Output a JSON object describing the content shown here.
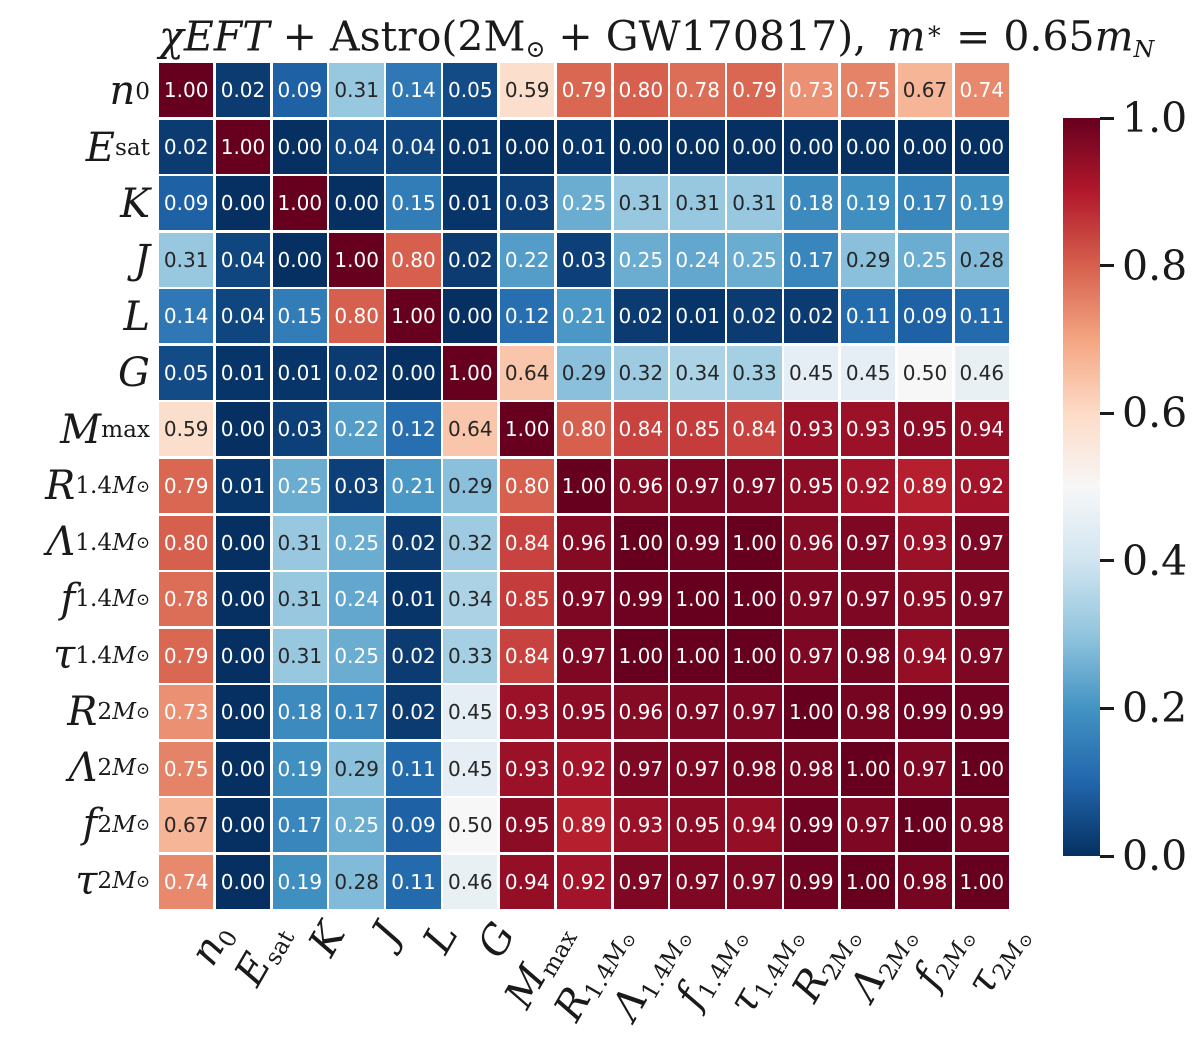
{
  "title": {
    "text": "χEFT + Astro(2M⊙ + GW170817), m∗ = 0.65mN",
    "segments": [
      {
        "t": "χEFT",
        "i": true
      },
      {
        "t": " + Astro(2M"
      },
      {
        "t": "⊙",
        "sub": true
      },
      {
        "t": " + GW170817),&ensp;"
      },
      {
        "t": "m",
        "i": true
      },
      {
        "t": "∗",
        "sup": true
      },
      {
        "t": " = 0.65"
      },
      {
        "t": "m",
        "i": true
      },
      {
        "t": "N",
        "i": true,
        "sub": true
      }
    ]
  },
  "chart_data": {
    "type": "heatmap",
    "title": "χEFT + Astro(2M⊙ + GW170817), m∗ = 0.65mN",
    "categories": [
      "n_0",
      "E_sat",
      "K",
      "J",
      "L",
      "G",
      "M_max",
      "R_1.4M⊙",
      "Λ_1.4M⊙",
      "f_1.4M⊙",
      "τ_1.4M⊙",
      "R_2M⊙",
      "Λ_2M⊙",
      "f_2M⊙",
      "τ_2M⊙"
    ],
    "matrix": [
      [
        1.0,
        0.02,
        0.09,
        0.31,
        0.14,
        0.05,
        0.59,
        0.79,
        0.8,
        0.78,
        0.79,
        0.73,
        0.75,
        0.67,
        0.74
      ],
      [
        0.02,
        1.0,
        0.0,
        0.04,
        0.04,
        0.01,
        0.0,
        0.01,
        0.0,
        0.0,
        0.0,
        0.0,
        0.0,
        0.0,
        0.0
      ],
      [
        0.09,
        0.0,
        1.0,
        0.0,
        0.15,
        0.01,
        0.03,
        0.25,
        0.31,
        0.31,
        0.31,
        0.18,
        0.19,
        0.17,
        0.19
      ],
      [
        0.31,
        0.04,
        0.0,
        1.0,
        0.8,
        0.02,
        0.22,
        0.03,
        0.25,
        0.24,
        0.25,
        0.17,
        0.29,
        0.25,
        0.28
      ],
      [
        0.14,
        0.04,
        0.15,
        0.8,
        1.0,
        0.0,
        0.12,
        0.21,
        0.02,
        0.01,
        0.02,
        0.02,
        0.11,
        0.09,
        0.11
      ],
      [
        0.05,
        0.01,
        0.01,
        0.02,
        0.0,
        1.0,
        0.64,
        0.29,
        0.32,
        0.34,
        0.33,
        0.45,
        0.45,
        0.5,
        0.46
      ],
      [
        0.59,
        0.0,
        0.03,
        0.22,
        0.12,
        0.64,
        1.0,
        0.8,
        0.84,
        0.85,
        0.84,
        0.93,
        0.93,
        0.95,
        0.94
      ],
      [
        0.79,
        0.01,
        0.25,
        0.03,
        0.21,
        0.29,
        0.8,
        1.0,
        0.96,
        0.97,
        0.97,
        0.95,
        0.92,
        0.89,
        0.92
      ],
      [
        0.8,
        0.0,
        0.31,
        0.25,
        0.02,
        0.32,
        0.84,
        0.96,
        1.0,
        0.99,
        1.0,
        0.96,
        0.97,
        0.93,
        0.97
      ],
      [
        0.78,
        0.0,
        0.31,
        0.24,
        0.01,
        0.34,
        0.85,
        0.97,
        0.99,
        1.0,
        1.0,
        0.97,
        0.97,
        0.95,
        0.97
      ],
      [
        0.79,
        0.0,
        0.31,
        0.25,
        0.02,
        0.33,
        0.84,
        0.97,
        1.0,
        1.0,
        1.0,
        0.97,
        0.98,
        0.94,
        0.97
      ],
      [
        0.73,
        0.0,
        0.18,
        0.17,
        0.02,
        0.45,
        0.93,
        0.95,
        0.96,
        0.97,
        0.97,
        1.0,
        0.98,
        0.99,
        0.99
      ],
      [
        0.75,
        0.0,
        0.19,
        0.29,
        0.11,
        0.45,
        0.93,
        0.92,
        0.97,
        0.97,
        0.98,
        0.98,
        1.0,
        0.97,
        1.0
      ],
      [
        0.67,
        0.0,
        0.17,
        0.25,
        0.09,
        0.5,
        0.95,
        0.89,
        0.93,
        0.95,
        0.94,
        0.99,
        0.97,
        1.0,
        0.98
      ],
      [
        0.74,
        0.0,
        0.19,
        0.28,
        0.11,
        0.46,
        0.94,
        0.92,
        0.97,
        0.97,
        0.97,
        0.99,
        1.0,
        0.98,
        1.0
      ]
    ],
    "vmin": 0.0,
    "vmax": 1.0,
    "colormap": "RdBu_r",
    "value_format": "0.00",
    "grid": false,
    "colorbar_position": "right",
    "colorbar_ticks": [
      "1.0",
      "0.8",
      "0.6",
      "0.4",
      "0.2",
      "0.0"
    ]
  },
  "axis_label_segments": [
    [
      {
        "t": "n",
        "i": true
      },
      {
        "t": "0",
        "sub": true
      }
    ],
    [
      {
        "t": "E",
        "i": true
      },
      {
        "t": "sat",
        "sub": true
      }
    ],
    [
      {
        "t": "K",
        "i": true
      }
    ],
    [
      {
        "t": "J",
        "i": true
      }
    ],
    [
      {
        "t": "L",
        "i": true
      }
    ],
    [
      {
        "t": "G",
        "i": true
      }
    ],
    [
      {
        "t": "M",
        "i": true
      },
      {
        "t": "max",
        "sub": true
      }
    ],
    [
      {
        "t": "R",
        "i": true
      },
      {
        "t": "1.4",
        "sub": true
      },
      {
        "t": "M",
        "i": true,
        "sub": true
      },
      {
        "t": "⊙",
        "subsub": true
      }
    ],
    [
      {
        "t": "Λ",
        "i": true
      },
      {
        "t": "1.4",
        "sub": true
      },
      {
        "t": "M",
        "i": true,
        "sub": true
      },
      {
        "t": "⊙",
        "subsub": true
      }
    ],
    [
      {
        "t": "f",
        "i": true
      },
      {
        "t": "1.4",
        "sub": true
      },
      {
        "t": "M",
        "i": true,
        "sub": true
      },
      {
        "t": "⊙",
        "subsub": true
      }
    ],
    [
      {
        "t": "τ",
        "i": true
      },
      {
        "t": "1.4",
        "sub": true
      },
      {
        "t": "M",
        "i": true,
        "sub": true
      },
      {
        "t": "⊙",
        "subsub": true
      }
    ],
    [
      {
        "t": "R",
        "i": true
      },
      {
        "t": "2",
        "sub": true
      },
      {
        "t": "M",
        "i": true,
        "sub": true
      },
      {
        "t": "⊙",
        "subsub": true
      }
    ],
    [
      {
        "t": "Λ",
        "i": true
      },
      {
        "t": "2",
        "sub": true
      },
      {
        "t": "M",
        "i": true,
        "sub": true
      },
      {
        "t": "⊙",
        "subsub": true
      }
    ],
    [
      {
        "t": "f",
        "i": true
      },
      {
        "t": "2",
        "sub": true
      },
      {
        "t": "M",
        "i": true,
        "sub": true
      },
      {
        "t": "⊙",
        "subsub": true
      }
    ],
    [
      {
        "t": "τ",
        "i": true
      },
      {
        "t": "2",
        "sub": true
      },
      {
        "t": "M",
        "i": true,
        "sub": true
      },
      {
        "t": "⊙",
        "subsub": true
      }
    ]
  ],
  "colors": {
    "background": "#ffffff",
    "axis_text": "#1a1a1a",
    "annotation_text_light": "#ffffff",
    "annotation_text_dark": "#262626",
    "tick_mark": "#1a1a1a",
    "cmap_anchors": [
      "#053061",
      "#2166ac",
      "#4393c3",
      "#92c5de",
      "#d1e5f0",
      "#f7f7f7",
      "#fddbc7",
      "#f4a582",
      "#d6604d",
      "#b2182b",
      "#67001f"
    ]
  }
}
